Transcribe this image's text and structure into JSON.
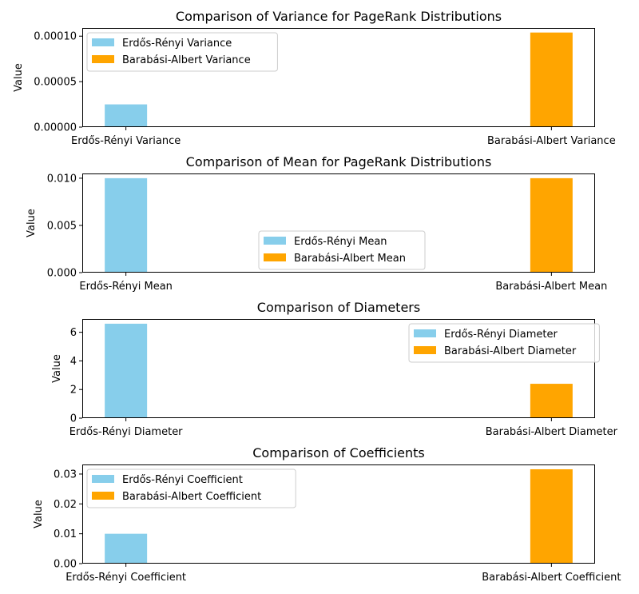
{
  "chart_data": [
    {
      "type": "bar",
      "title": "Comparison of Variance for PageRank Distributions",
      "xlabel": "",
      "ylabel": "Value",
      "categories": [
        "Erdős-Rényi Variance",
        "Barabási-Albert Variance"
      ],
      "values": [
        2.5e-05,
        0.000104
      ],
      "colors": [
        "#87ceeb",
        "#ffa500"
      ],
      "ylim": [
        0,
        0.000109
      ],
      "yticks": [
        0,
        5e-05,
        0.0001
      ],
      "ytick_labels": [
        "0.00000",
        "0.00005",
        "0.00010"
      ],
      "legend": [
        "Erdős-Rényi Variance",
        "Barabási-Albert Variance"
      ],
      "legend_position": "upper-left"
    },
    {
      "type": "bar",
      "title": "Comparison of Mean for PageRank Distributions",
      "xlabel": "",
      "ylabel": "Value",
      "categories": [
        "Erdős-Rényi Mean",
        "Barabási-Albert Mean"
      ],
      "values": [
        0.01,
        0.01
      ],
      "colors": [
        "#87ceeb",
        "#ffa500"
      ],
      "ylim": [
        0,
        0.0105
      ],
      "yticks": [
        0,
        0.005,
        0.01
      ],
      "ytick_labels": [
        "0.000",
        "0.005",
        "0.010"
      ],
      "legend": [
        "Erdős-Rényi Mean",
        "Barabási-Albert Mean"
      ],
      "legend_position": "lower-center"
    },
    {
      "type": "bar",
      "title": "Comparison of Diameters",
      "xlabel": "",
      "ylabel": "Value",
      "categories": [
        "Erdős-Rényi Diameter",
        "Barabási-Albert Diameter"
      ],
      "values": [
        6.6,
        2.4
      ],
      "colors": [
        "#87ceeb",
        "#ffa500"
      ],
      "ylim": [
        0,
        6.93
      ],
      "yticks": [
        0,
        2,
        4,
        6
      ],
      "ytick_labels": [
        "0",
        "2",
        "4",
        "6"
      ],
      "legend": [
        "Erdős-Rényi Diameter",
        "Barabási-Albert Diameter"
      ],
      "legend_position": "upper-right"
    },
    {
      "type": "bar",
      "title": "Comparison of Coefficients",
      "xlabel": "",
      "ylabel": "Value",
      "categories": [
        "Erdős-Rényi Coefficient",
        "Barabási-Albert Coefficient"
      ],
      "values": [
        0.01,
        0.0316
      ],
      "colors": [
        "#87ceeb",
        "#ffa500"
      ],
      "ylim": [
        0,
        0.0332
      ],
      "yticks": [
        0,
        0.01,
        0.02,
        0.03
      ],
      "ytick_labels": [
        "0.00",
        "0.01",
        "0.02",
        "0.03"
      ],
      "legend": [
        "Erdős-Rényi Coefficient",
        "Barabási-Albert Coefficient"
      ],
      "legend_position": "upper-left"
    }
  ]
}
